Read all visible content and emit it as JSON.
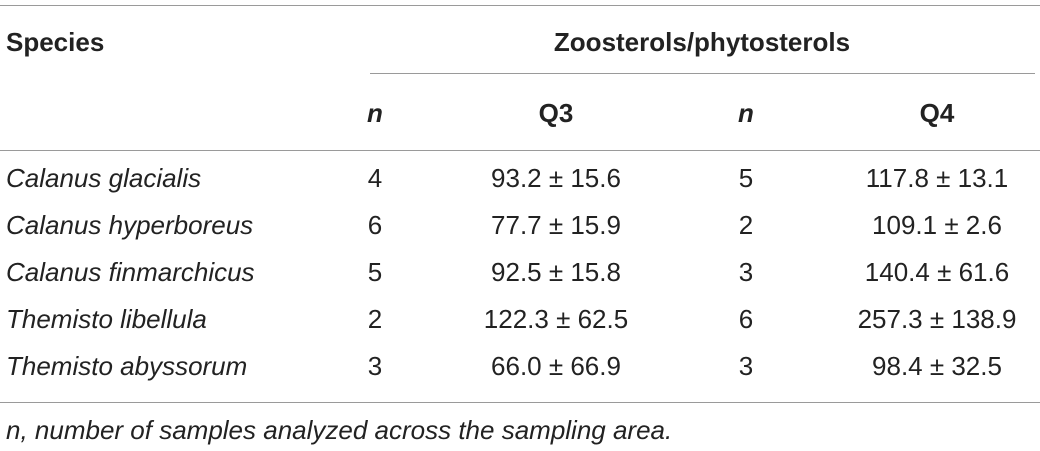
{
  "table": {
    "header": {
      "species": "Species",
      "group": "Zoosterols/phytosterols",
      "columns": [
        "n",
        "Q3",
        "n",
        "Q4"
      ]
    },
    "rows": [
      [
        "Calanus glacialis",
        4,
        "93.2 ± 15.6",
        5,
        "117.8 ± 13.1"
      ],
      [
        "Calanus hyperboreus",
        6,
        "77.7 ± 15.9",
        2,
        "109.1 ± 2.6"
      ],
      [
        "Calanus finmarchicus",
        5,
        "92.5 ± 15.8",
        3,
        "140.4 ± 61.6"
      ],
      [
        "Themisto libellula",
        2,
        "122.3 ± 62.5",
        6,
        "257.3 ± 138.9"
      ],
      [
        "Themisto abyssorum",
        3,
        "66.0 ± 66.9",
        3,
        "98.4 ± 32.5"
      ]
    ],
    "footnote": "n, number of samples analyzed across the sampling area."
  }
}
